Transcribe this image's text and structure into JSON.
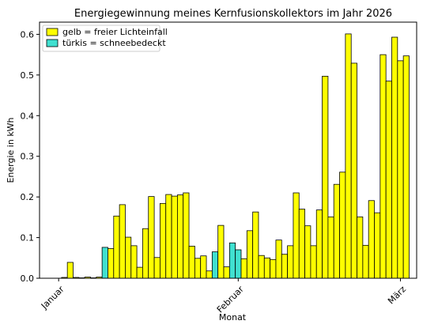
{
  "chart_data": {
    "type": "bar",
    "title": "Energiegewinnung meines Kernfusionskollektors im Jahr 2026",
    "xlabel": "Monat",
    "ylabel": "Energie in kWh",
    "ylim": [
      0,
      0.63
    ],
    "yticks": [
      0.0,
      0.1,
      0.2,
      0.3,
      0.4,
      0.5,
      0.6
    ],
    "ytick_labels": [
      "0.0",
      "0.1",
      "0.2",
      "0.3",
      "0.4",
      "0.5",
      "0.6"
    ],
    "xticks": [
      {
        "day": 1,
        "label": "Januar"
      },
      {
        "day": 32,
        "label": "Februar"
      },
      {
        "day": 60,
        "label": "März"
      }
    ],
    "grid": false,
    "legend_position": "top-left",
    "legend": [
      {
        "label": "gelb = freier Lichteinfall",
        "color": "#ffff00"
      },
      {
        "label": "türkis = schneebedeckt",
        "color": "#40e0d0"
      }
    ],
    "colors": {
      "free": "#ffff00",
      "snow": "#40e0d0",
      "edge": "#000000"
    },
    "days": [
      1,
      2,
      3,
      4,
      5,
      6,
      7,
      8,
      9,
      10,
      11,
      12,
      13,
      14,
      15,
      16,
      17,
      18,
      19,
      20,
      21,
      22,
      23,
      24,
      25,
      26,
      27,
      28,
      29,
      30,
      31,
      32,
      33,
      34,
      35,
      36,
      37,
      38,
      39,
      40,
      41,
      42,
      43,
      44,
      45,
      46,
      47,
      48,
      49,
      50,
      51,
      52,
      53,
      54,
      55,
      56,
      57,
      58,
      59,
      60,
      61
    ],
    "values": [
      0.0,
      0.002,
      0.039,
      0.002,
      0.001,
      0.003,
      0.001,
      0.003,
      0.076,
      0.073,
      0.153,
      0.181,
      0.101,
      0.08,
      0.027,
      0.122,
      0.201,
      0.051,
      0.184,
      0.206,
      0.202,
      0.205,
      0.21,
      0.079,
      0.049,
      0.055,
      0.018,
      0.065,
      0.13,
      0.028,
      0.087,
      0.07,
      0.048,
      0.117,
      0.163,
      0.056,
      0.05,
      0.046,
      0.094,
      0.059,
      0.08,
      0.21,
      0.17,
      0.129,
      0.08,
      0.168,
      0.497,
      0.151,
      0.231,
      0.261,
      0.601,
      0.529,
      0.151,
      0.081,
      0.191,
      0.161,
      0.55,
      0.485,
      0.593,
      0.535,
      0.547
    ],
    "snow_days": [
      9,
      28,
      31,
      32
    ]
  }
}
